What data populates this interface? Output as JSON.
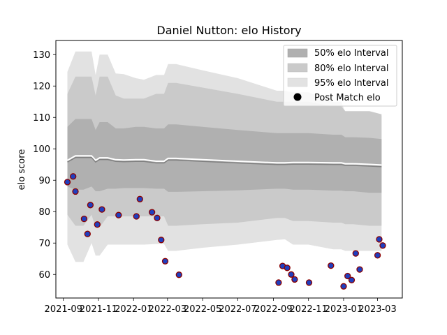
{
  "chart_data": {
    "type": "line",
    "title": "Daniel Nutton: elo History",
    "xlabel": "",
    "ylabel": "elo score",
    "xlim": [
      "2021-08-19",
      "2023-04-13"
    ],
    "ylim": [
      52.5,
      134.5
    ],
    "x_ticks": [
      "2021-09",
      "2021-11",
      "2022-01",
      "2022-03",
      "2022-05",
      "2022-07",
      "2022-09",
      "2022-11",
      "2023-01",
      "2023-03"
    ],
    "y_ticks": [
      60,
      70,
      80,
      90,
      100,
      110,
      120,
      130
    ],
    "grid": false,
    "legend_position": "top-right",
    "legend": [
      "50% elo Interval",
      "80% elo Interval",
      "95% elo Interval",
      "Post Match elo"
    ],
    "colors": {
      "band50": "#b0b0b0",
      "band80": "#cacaca",
      "band95": "#e2e2e2",
      "mean_line": "#808080",
      "highlight_line": "#ffffff",
      "marker_fill": "#1f3fbf",
      "marker_edge": "#8b0000"
    },
    "series": [
      {
        "kind": "interval",
        "dates": [
          "2021-09-08",
          "2021-09-22",
          "2021-10-06",
          "2021-10-20",
          "2021-10-27",
          "2021-11-03",
          "2021-11-17",
          "2021-12-01",
          "2021-12-15",
          "2022-01-05",
          "2022-01-19",
          "2022-02-09",
          "2022-02-23",
          "2022-03-02",
          "2022-03-16",
          "2022-05-01",
          "2022-07-01",
          "2022-09-07",
          "2022-09-21",
          "2022-10-05",
          "2022-11-01",
          "2022-12-14",
          "2022-12-28",
          "2023-01-04",
          "2023-01-18",
          "2023-02-15",
          "2023-03-08"
        ],
        "p95_low": [
          69.5,
          64,
          64,
          70,
          66,
          66,
          69.5,
          69.5,
          69.5,
          69.5,
          69.5,
          69.7,
          69.7,
          67.5,
          67.5,
          68.5,
          69.5,
          71,
          71.2,
          69.5,
          69.5,
          68,
          68,
          67.5,
          67.5,
          67.5,
          67.5
        ],
        "p80_low": [
          79,
          75.5,
          75.5,
          79,
          75,
          75,
          78.5,
          78.5,
          78.5,
          78.5,
          78.5,
          78.5,
          78.5,
          75.5,
          75.5,
          76,
          76.5,
          78,
          78,
          77,
          77,
          76.5,
          76.5,
          76,
          76,
          75.5,
          75.5
        ],
        "p50_low": [
          88,
          87,
          87,
          88,
          86.5,
          86.5,
          87.3,
          87.3,
          87.5,
          87.5,
          87.5,
          87.3,
          87.3,
          86.3,
          86.3,
          86.5,
          86.8,
          87.3,
          87.3,
          87,
          87,
          86.7,
          86.7,
          86.5,
          86.5,
          86,
          86
        ],
        "mean": [
          95.8,
          97.2,
          97.2,
          97.2,
          95.8,
          96.6,
          96.6,
          96,
          95.9,
          96,
          96,
          95.5,
          95.5,
          96.4,
          96.4,
          96,
          95.5,
          95,
          95,
          95.1,
          95.1,
          95,
          95,
          94.7,
          94.7,
          94.5,
          94.3
        ],
        "p50_high": [
          107,
          109.5,
          109.5,
          109.5,
          106,
          108.5,
          108.5,
          106.5,
          106.5,
          107,
          107,
          106.5,
          106.5,
          107.8,
          107.8,
          107,
          106,
          105,
          105,
          105,
          105,
          104.5,
          104.5,
          103.7,
          103.7,
          103.5,
          103.1
        ],
        "p80_high": [
          117.5,
          123,
          123,
          123,
          117,
          123,
          123,
          117,
          116,
          116,
          116,
          117.5,
          117.5,
          121,
          121,
          119.5,
          117.5,
          115,
          115,
          115,
          115,
          113.5,
          113.5,
          112,
          112,
          112,
          111
        ],
        "p95_high": [
          124.5,
          131,
          131,
          131,
          123.5,
          130,
          130,
          124,
          123.8,
          122.5,
          122,
          123.5,
          123.5,
          127,
          127,
          125,
          122.5,
          118.5,
          118.5,
          118,
          118,
          115,
          115,
          111.5,
          111.5,
          111.5,
          110.5
        ]
      },
      {
        "name": "Post Match elo",
        "kind": "scatter",
        "dates": [
          "2021-09-08",
          "2021-09-18",
          "2021-09-22",
          "2021-10-07",
          "2021-10-13",
          "2021-10-18",
          "2021-10-30",
          "2021-11-07",
          "2021-12-06",
          "2022-01-06",
          "2022-01-12",
          "2022-02-02",
          "2022-02-11",
          "2022-02-18",
          "2022-02-25",
          "2022-03-21",
          "2022-09-10",
          "2022-09-17",
          "2022-09-25",
          "2022-10-02",
          "2022-10-08",
          "2022-11-02",
          "2022-12-10",
          "2023-01-01",
          "2023-01-08",
          "2023-01-15",
          "2023-01-22",
          "2023-01-29",
          "2023-03-01",
          "2023-03-04",
          "2023-03-10"
        ],
        "values": [
          89.4,
          91.2,
          86.4,
          77.7,
          72.9,
          82.1,
          75.9,
          80.7,
          78.9,
          78.5,
          84,
          79.8,
          78,
          71,
          64.2,
          59.9,
          57.4,
          62.7,
          62.1,
          60,
          58.4,
          57.4,
          62.8,
          56.2,
          59.5,
          58.2,
          66.7,
          61.6,
          66.1,
          71.2,
          69.2
        ]
      }
    ]
  }
}
